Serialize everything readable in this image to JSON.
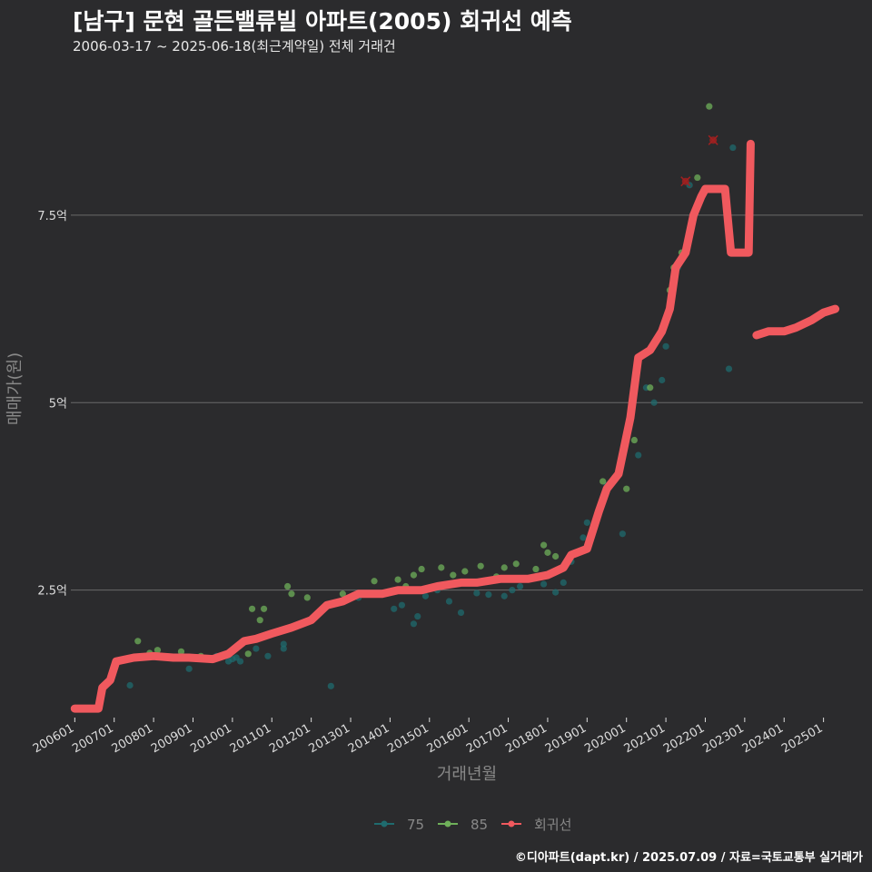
{
  "title": "[남구] 문현 골든밸류빌 아파트(2005) 회귀선 예측",
  "subtitle": "2006-03-17 ~ 2025-06-18(최근계약일) 전체 거래건",
  "footer": "©디아파트(dapt.kr) / 2025.07.09 / 자료=국토교통부 실거래가",
  "colors": {
    "s75": "#1f6b6e",
    "s85": "#6fb05a",
    "regression": "#f0595e",
    "highlight": "#a02020",
    "grid": "#6a6a6a",
    "axisText": "#dddddd",
    "labelText": "#888888"
  },
  "chart_data": {
    "type": "scatter",
    "xlabel": "거래년월",
    "ylabel": "매매가(원)",
    "x_unit": "year-fraction",
    "xlim": [
      2005.9,
      2026.0
    ],
    "ylim": [
      0.8,
      9.4
    ],
    "y_unit": "억",
    "yticks": [
      {
        "value": 2.5,
        "label": "2.5억"
      },
      {
        "value": 5,
        "label": "5억"
      },
      {
        "value": 7.5,
        "label": "7.5억"
      }
    ],
    "xticks": [
      {
        "value": 2006.0,
        "label": "200601"
      },
      {
        "value": 2007.0,
        "label": "200701"
      },
      {
        "value": 2008.0,
        "label": "200801"
      },
      {
        "value": 2009.0,
        "label": "200901"
      },
      {
        "value": 2010.0,
        "label": "201001"
      },
      {
        "value": 2011.0,
        "label": "201101"
      },
      {
        "value": 2012.0,
        "label": "201201"
      },
      {
        "value": 2013.0,
        "label": "201301"
      },
      {
        "value": 2014.0,
        "label": "201401"
      },
      {
        "value": 2015.0,
        "label": "201501"
      },
      {
        "value": 2016.0,
        "label": "201601"
      },
      {
        "value": 2017.0,
        "label": "201701"
      },
      {
        "value": 2018.0,
        "label": "201801"
      },
      {
        "value": 2019.0,
        "label": "201901"
      },
      {
        "value": 2020.0,
        "label": "202001"
      },
      {
        "value": 2021.0,
        "label": "202101"
      },
      {
        "value": 2022.0,
        "label": "202201"
      },
      {
        "value": 2023.0,
        "label": "202301"
      },
      {
        "value": 2024.0,
        "label": "202401"
      },
      {
        "value": 2025.0,
        "label": "202501"
      }
    ],
    "series": [
      {
        "name": "75",
        "points": [
          [
            2007.4,
            1.23
          ],
          [
            2008.3,
            1.6
          ],
          [
            2008.9,
            1.45
          ],
          [
            2009.6,
            1.62
          ],
          [
            2009.9,
            1.55
          ],
          [
            2010.0,
            1.58
          ],
          [
            2010.1,
            1.6
          ],
          [
            2010.2,
            1.55
          ],
          [
            2010.6,
            1.72
          ],
          [
            2010.9,
            1.62
          ],
          [
            2011.3,
            1.72
          ],
          [
            2011.3,
            1.78
          ],
          [
            2012.5,
            1.22
          ],
          [
            2013.2,
            2.4
          ],
          [
            2014.1,
            2.25
          ],
          [
            2014.3,
            2.3
          ],
          [
            2014.6,
            2.05
          ],
          [
            2014.7,
            2.15
          ],
          [
            2014.9,
            2.42
          ],
          [
            2015.2,
            2.5
          ],
          [
            2015.5,
            2.35
          ],
          [
            2015.8,
            2.2
          ],
          [
            2016.2,
            2.46
          ],
          [
            2016.5,
            2.44
          ],
          [
            2016.9,
            2.42
          ],
          [
            2017.1,
            2.5
          ],
          [
            2017.3,
            2.55
          ],
          [
            2017.9,
            2.58
          ],
          [
            2018.2,
            2.47
          ],
          [
            2018.4,
            2.6
          ],
          [
            2018.6,
            2.88
          ],
          [
            2018.9,
            3.2
          ],
          [
            2019.0,
            3.4
          ],
          [
            2019.5,
            3.9
          ],
          [
            2019.9,
            3.25
          ],
          [
            2020.3,
            4.3
          ],
          [
            2020.5,
            5.2
          ],
          [
            2020.7,
            5.0
          ],
          [
            2020.9,
            5.3
          ],
          [
            2021.0,
            5.75
          ],
          [
            2021.3,
            6.8
          ],
          [
            2021.6,
            7.9
          ],
          [
            2022.6,
            5.45
          ],
          [
            2022.7,
            8.4
          ]
        ]
      },
      {
        "name": "85",
        "points": [
          [
            2007.6,
            1.82
          ],
          [
            2007.9,
            1.66
          ],
          [
            2008.1,
            1.7
          ],
          [
            2008.7,
            1.68
          ],
          [
            2009.2,
            1.62
          ],
          [
            2010.4,
            1.65
          ],
          [
            2010.5,
            2.25
          ],
          [
            2010.7,
            2.1
          ],
          [
            2010.8,
            2.25
          ],
          [
            2011.4,
            2.55
          ],
          [
            2011.5,
            2.45
          ],
          [
            2011.9,
            2.4
          ],
          [
            2012.8,
            2.45
          ],
          [
            2013.6,
            2.62
          ],
          [
            2014.2,
            2.64
          ],
          [
            2014.4,
            2.55
          ],
          [
            2014.6,
            2.7
          ],
          [
            2014.8,
            2.78
          ],
          [
            2015.3,
            2.8
          ],
          [
            2015.6,
            2.7
          ],
          [
            2015.9,
            2.75
          ],
          [
            2016.3,
            2.82
          ],
          [
            2016.7,
            2.68
          ],
          [
            2016.9,
            2.8
          ],
          [
            2017.2,
            2.85
          ],
          [
            2017.7,
            2.78
          ],
          [
            2017.9,
            3.1
          ],
          [
            2018.0,
            3.0
          ],
          [
            2018.2,
            2.95
          ],
          [
            2019.4,
            3.95
          ],
          [
            2019.7,
            4.0
          ],
          [
            2020.0,
            3.85
          ],
          [
            2020.2,
            4.5
          ],
          [
            2020.6,
            5.2
          ],
          [
            2021.1,
            6.5
          ],
          [
            2021.2,
            6.8
          ],
          [
            2021.4,
            7.0
          ],
          [
            2021.8,
            8.0
          ],
          [
            2022.1,
            8.95
          ]
        ]
      }
    ],
    "highlights": [
      [
        2021.5,
        7.95
      ],
      [
        2022.2,
        8.5
      ]
    ],
    "regression": {
      "name": "회귀선",
      "segments": [
        [
          [
            2006.0,
            0.92
          ],
          [
            2006.6,
            0.92
          ],
          [
            2006.7,
            1.2
          ],
          [
            2006.9,
            1.3
          ],
          [
            2007.05,
            1.55
          ],
          [
            2007.5,
            1.6
          ],
          [
            2008.0,
            1.62
          ],
          [
            2008.5,
            1.6
          ],
          [
            2008.9,
            1.6
          ],
          [
            2009.5,
            1.58
          ],
          [
            2009.9,
            1.65
          ],
          [
            2010.3,
            1.82
          ],
          [
            2010.6,
            1.85
          ],
          [
            2011.0,
            1.92
          ],
          [
            2011.5,
            2.0
          ],
          [
            2012.0,
            2.1
          ],
          [
            2012.4,
            2.3
          ],
          [
            2012.8,
            2.35
          ],
          [
            2013.2,
            2.45
          ],
          [
            2013.8,
            2.45
          ],
          [
            2014.2,
            2.5
          ],
          [
            2014.8,
            2.5
          ],
          [
            2015.2,
            2.55
          ],
          [
            2015.8,
            2.6
          ],
          [
            2016.2,
            2.6
          ],
          [
            2016.8,
            2.65
          ],
          [
            2017.5,
            2.65
          ],
          [
            2018.0,
            2.7
          ],
          [
            2018.4,
            2.8
          ],
          [
            2018.6,
            2.97
          ],
          [
            2019.0,
            3.05
          ],
          [
            2019.3,
            3.55
          ],
          [
            2019.5,
            3.85
          ],
          [
            2019.8,
            4.05
          ],
          [
            2020.1,
            4.8
          ],
          [
            2020.3,
            5.6
          ],
          [
            2020.6,
            5.7
          ],
          [
            2020.9,
            5.95
          ],
          [
            2021.1,
            6.25
          ],
          [
            2021.25,
            6.8
          ],
          [
            2021.5,
            7.0
          ],
          [
            2021.7,
            7.5
          ],
          [
            2021.9,
            7.75
          ],
          [
            2022.0,
            7.85
          ],
          [
            2022.5,
            7.85
          ],
          [
            2022.65,
            7.0
          ],
          [
            2023.1,
            7.0
          ],
          [
            2023.15,
            8.45
          ]
        ],
        [
          [
            2023.3,
            5.9
          ],
          [
            2023.6,
            5.95
          ],
          [
            2024.0,
            5.95
          ],
          [
            2024.3,
            6.0
          ],
          [
            2024.7,
            6.1
          ],
          [
            2025.0,
            6.2
          ],
          [
            2025.3,
            6.25
          ]
        ]
      ]
    },
    "legend": {
      "placement": "bottom-center",
      "items": [
        {
          "label": "75",
          "key": "s75"
        },
        {
          "label": "85",
          "key": "s85"
        },
        {
          "label": "회귀선",
          "key": "regression"
        }
      ]
    }
  }
}
